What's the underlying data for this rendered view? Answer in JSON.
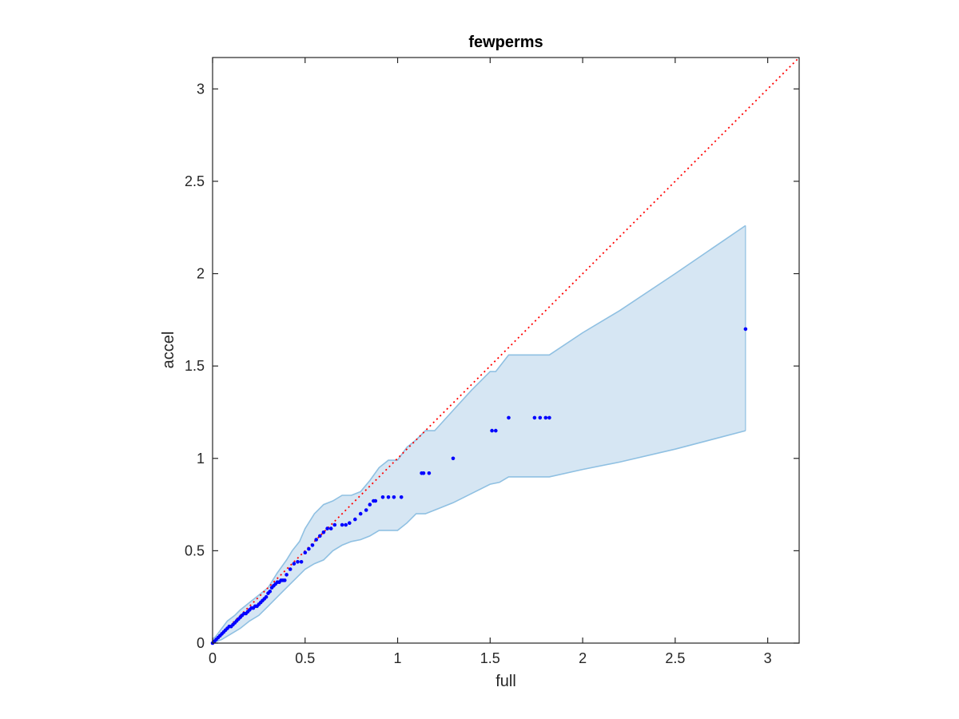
{
  "chart_data": {
    "type": "scatter",
    "title": "fewperms",
    "xlabel": "full",
    "ylabel": "accel",
    "xlim": [
      0,
      3.17
    ],
    "ylim": [
      0,
      3.17
    ],
    "xticks": [
      0,
      0.5,
      1,
      1.5,
      2,
      2.5,
      3
    ],
    "xtick_labels": [
      "0",
      "0.5",
      "1",
      "1.5",
      "2",
      "2.5",
      "3"
    ],
    "yticks": [
      0,
      0.5,
      1,
      1.5,
      2,
      2.5,
      3
    ],
    "ytick_labels": [
      "0",
      "0.5",
      "1",
      "1.5",
      "2",
      "2.5",
      "3"
    ],
    "grid": false,
    "colors": {
      "points": "#0000ff",
      "reference_line": "#ff0000",
      "band_fill": "#d6e6f3",
      "band_edge": "#8fc0e2",
      "axes": "#262626"
    },
    "reference_line": {
      "x": [
        0,
        3.17
      ],
      "y": [
        0,
        3.17
      ],
      "style": "dotted"
    },
    "band_upper": {
      "x": [
        0,
        0.02,
        0.05,
        0.08,
        0.12,
        0.15,
        0.2,
        0.25,
        0.3,
        0.35,
        0.4,
        0.43,
        0.47,
        0.5,
        0.55,
        0.6,
        0.65,
        0.7,
        0.75,
        0.8,
        0.85,
        0.9,
        0.95,
        1.0,
        1.05,
        1.1,
        1.15,
        1.2,
        1.3,
        1.4,
        1.5,
        1.53,
        1.6,
        1.7,
        1.8,
        1.82,
        2.0,
        2.2,
        2.5,
        2.88
      ],
      "y": [
        0.02,
        0.04,
        0.08,
        0.12,
        0.15,
        0.18,
        0.22,
        0.26,
        0.3,
        0.38,
        0.45,
        0.5,
        0.55,
        0.62,
        0.7,
        0.75,
        0.77,
        0.8,
        0.8,
        0.82,
        0.88,
        0.95,
        0.99,
        0.99,
        1.06,
        1.1,
        1.15,
        1.15,
        1.26,
        1.37,
        1.47,
        1.47,
        1.56,
        1.56,
        1.56,
        1.56,
        1.68,
        1.8,
        2.0,
        2.26
      ]
    },
    "band_lower": {
      "x": [
        0,
        0.05,
        0.1,
        0.15,
        0.2,
        0.25,
        0.3,
        0.35,
        0.4,
        0.45,
        0.5,
        0.55,
        0.6,
        0.65,
        0.7,
        0.75,
        0.8,
        0.85,
        0.9,
        0.95,
        1.0,
        1.05,
        1.1,
        1.15,
        1.2,
        1.3,
        1.4,
        1.5,
        1.55,
        1.6,
        1.7,
        1.8,
        1.82,
        2.0,
        2.2,
        2.5,
        2.88
      ],
      "y": [
        0,
        0.02,
        0.05,
        0.08,
        0.12,
        0.15,
        0.2,
        0.25,
        0.3,
        0.35,
        0.4,
        0.43,
        0.45,
        0.5,
        0.53,
        0.55,
        0.56,
        0.58,
        0.61,
        0.61,
        0.61,
        0.65,
        0.7,
        0.7,
        0.72,
        0.76,
        0.81,
        0.86,
        0.87,
        0.9,
        0.9,
        0.9,
        0.9,
        0.94,
        0.98,
        1.05,
        1.15
      ]
    },
    "series": [
      {
        "x": [
          0.0,
          0.01,
          0.02,
          0.03,
          0.04,
          0.05,
          0.06,
          0.07,
          0.08,
          0.09,
          0.1,
          0.11,
          0.12,
          0.13,
          0.14,
          0.15,
          0.16,
          0.17,
          0.18,
          0.19,
          0.2,
          0.21,
          0.22,
          0.23,
          0.24,
          0.25,
          0.26,
          0.27,
          0.28,
          0.29,
          0.3,
          0.31,
          0.32,
          0.33,
          0.34,
          0.35,
          0.36,
          0.37,
          0.38,
          0.39,
          0.4,
          0.42,
          0.44,
          0.46,
          0.48,
          0.5,
          0.52,
          0.54,
          0.56,
          0.58,
          0.6,
          0.62,
          0.64,
          0.66,
          0.7,
          0.72,
          0.74,
          0.77,
          0.8,
          0.83,
          0.85,
          0.87,
          0.88,
          0.92,
          0.95,
          0.98,
          1.02,
          1.13,
          1.14,
          1.17,
          1.3,
          1.51,
          1.53,
          1.6,
          1.74,
          1.77,
          1.8,
          1.82,
          2.88
        ],
        "y": [
          0.0,
          0.01,
          0.02,
          0.03,
          0.04,
          0.05,
          0.06,
          0.07,
          0.08,
          0.09,
          0.09,
          0.1,
          0.11,
          0.12,
          0.13,
          0.14,
          0.15,
          0.16,
          0.16,
          0.17,
          0.18,
          0.19,
          0.19,
          0.2,
          0.2,
          0.21,
          0.22,
          0.23,
          0.24,
          0.25,
          0.27,
          0.28,
          0.3,
          0.31,
          0.32,
          0.33,
          0.33,
          0.34,
          0.34,
          0.34,
          0.37,
          0.4,
          0.43,
          0.44,
          0.44,
          0.49,
          0.51,
          0.53,
          0.56,
          0.58,
          0.6,
          0.62,
          0.62,
          0.64,
          0.64,
          0.64,
          0.65,
          0.67,
          0.7,
          0.72,
          0.75,
          0.77,
          0.77,
          0.79,
          0.79,
          0.79,
          0.79,
          0.92,
          0.92,
          0.92,
          1.0,
          1.15,
          1.15,
          1.22,
          1.22,
          1.22,
          1.22,
          1.22,
          1.7
        ]
      }
    ]
  }
}
